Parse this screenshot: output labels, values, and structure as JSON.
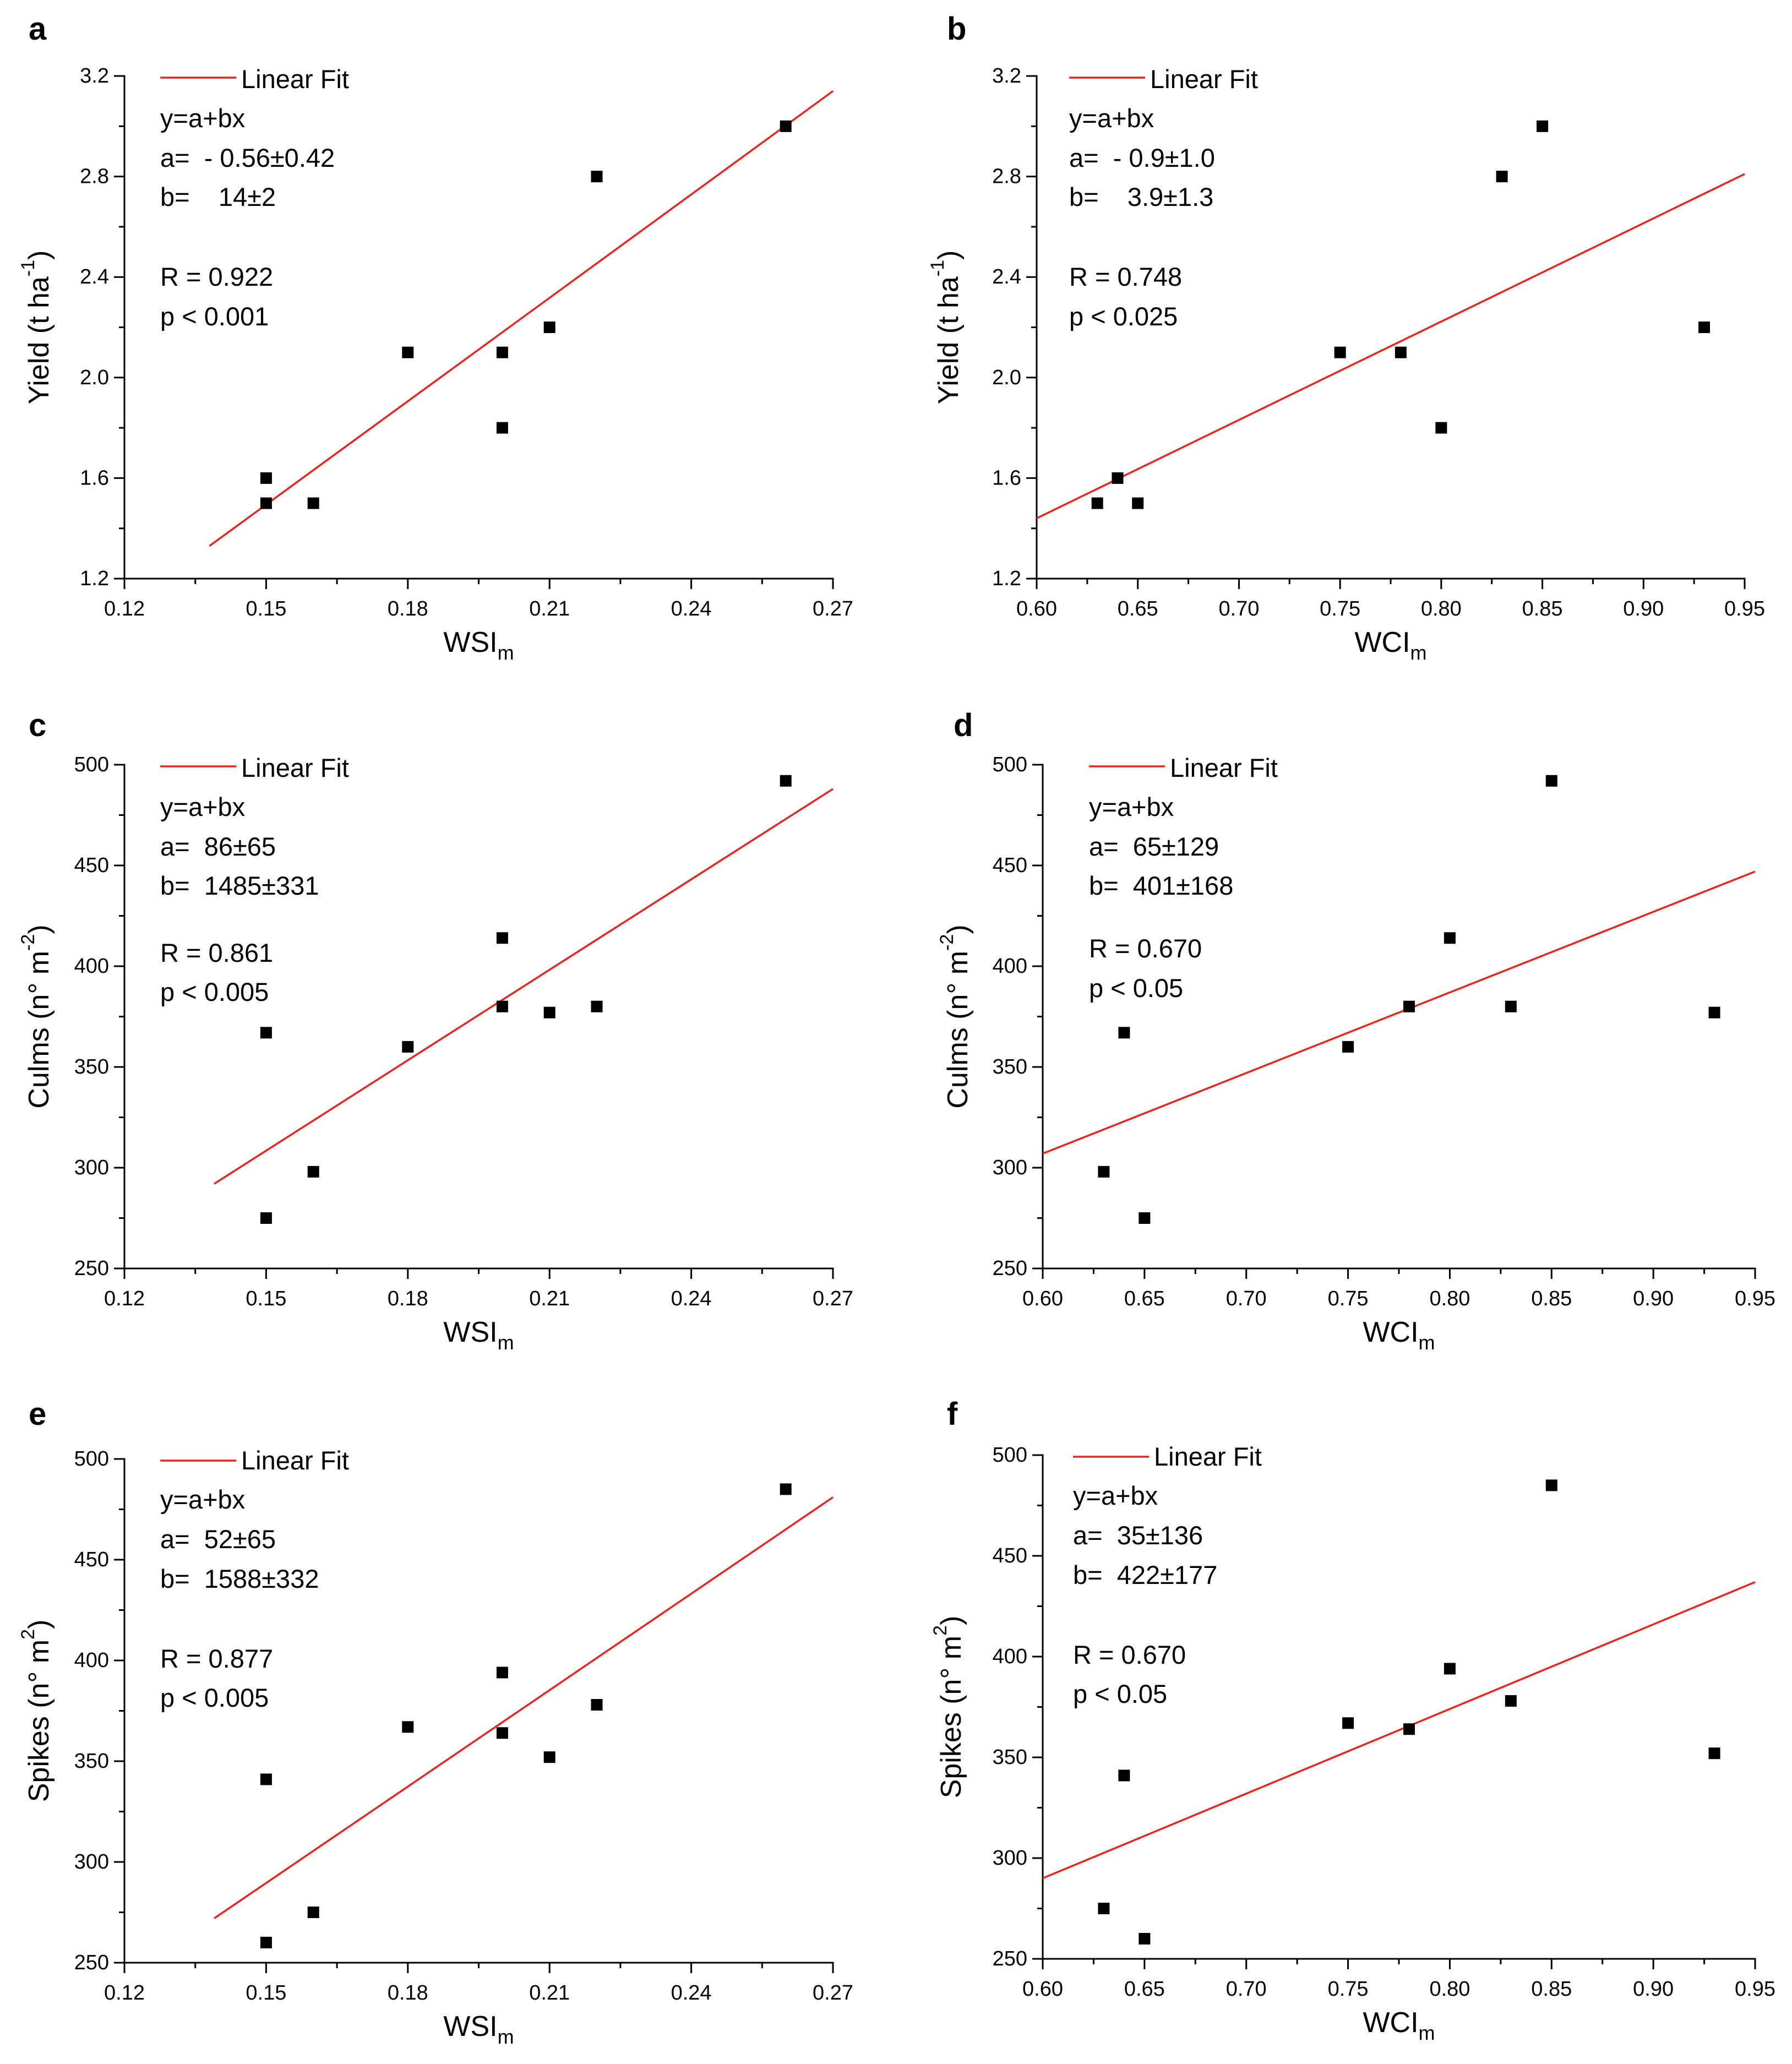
{
  "colors": {
    "points": "#000000",
    "fit": "#e8251f",
    "axis": "#000000",
    "text": "#000000"
  },
  "chart_data": [
    {
      "type": "scatter",
      "panel_label": "a",
      "xlabel": {
        "text": "WSI",
        "sub": "m"
      },
      "ylabel": {
        "text": "Yield (t ha",
        "sup": "-1",
        "close": ")"
      },
      "xlim": [
        0.12,
        0.27
      ],
      "ylim": [
        1.2,
        3.2
      ],
      "xticks": [
        "0.12",
        "0.15",
        "0.18",
        "0.21",
        "0.24",
        "0.27"
      ],
      "yticks": [
        "1.2",
        "1.6",
        "2.0",
        "2.4",
        "2.8",
        "3.2"
      ],
      "series": [
        {
          "name": "data",
          "x": [
            0.15,
            0.15,
            0.16,
            0.18,
            0.2,
            0.2,
            0.21,
            0.22,
            0.26
          ],
          "y": [
            1.6,
            1.5,
            1.5,
            2.1,
            2.1,
            1.8,
            2.2,
            2.8,
            3.0
          ]
        }
      ],
      "fit": {
        "name": "Linear Fit",
        "x": [
          0.138,
          0.27
        ],
        "y": [
          1.33,
          3.14
        ]
      },
      "legend": {
        "entry": "Linear Fit",
        "equation": "y=a+bx",
        "a": "a=  - 0.56±0.42",
        "b": "b=    14±2",
        "r": "R = 0.922",
        "p": "p < 0.001"
      }
    },
    {
      "type": "scatter",
      "panel_label": "b",
      "xlabel": {
        "text": "WCI",
        "sub": "m"
      },
      "ylabel": {
        "text": "Yield (t ha",
        "sup": "-1",
        "close": ")"
      },
      "xlim": [
        0.6,
        0.95
      ],
      "ylim": [
        1.2,
        3.2
      ],
      "xticks": [
        "0.60",
        "0.65",
        "0.70",
        "0.75",
        "0.80",
        "0.85",
        "0.90",
        "0.95"
      ],
      "yticks": [
        "1.2",
        "1.6",
        "2.0",
        "2.4",
        "2.8",
        "3.2"
      ],
      "series": [
        {
          "name": "data",
          "x": [
            0.63,
            0.64,
            0.65,
            0.75,
            0.78,
            0.8,
            0.83,
            0.85,
            0.93
          ],
          "y": [
            1.5,
            1.6,
            1.5,
            2.1,
            2.1,
            1.8,
            2.8,
            3.0,
            2.2
          ]
        }
      ],
      "fit": {
        "name": "Linear Fit",
        "x": [
          0.6,
          0.95
        ],
        "y": [
          1.44,
          2.81
        ]
      },
      "legend": {
        "entry": "Linear Fit",
        "equation": "y=a+bx",
        "a": "a=  - 0.9±1.0",
        "b": "b=    3.9±1.3",
        "r": "R = 0.748",
        "p": "p < 0.025"
      }
    },
    {
      "type": "scatter",
      "panel_label": "c",
      "xlabel": {
        "text": "WSI",
        "sub": "m"
      },
      "ylabel": {
        "text": "Culms (n° m",
        "sup": "-2",
        "close": ")"
      },
      "xlim": [
        0.12,
        0.27
      ],
      "ylim": [
        250,
        500
      ],
      "xticks": [
        "0.12",
        "0.15",
        "0.18",
        "0.21",
        "0.24",
        "0.27"
      ],
      "yticks": [
        "250",
        "300",
        "350",
        "400",
        "450",
        "500"
      ],
      "series": [
        {
          "name": "data",
          "x": [
            0.15,
            0.15,
            0.16,
            0.18,
            0.2,
            0.2,
            0.21,
            0.22,
            0.26
          ],
          "y": [
            367,
            275,
            298,
            360,
            414,
            380,
            377,
            380,
            492
          ]
        }
      ],
      "fit": {
        "name": "Linear Fit",
        "x": [
          0.139,
          0.27
        ],
        "y": [
          292,
          488
        ]
      },
      "legend": {
        "entry": "Linear Fit",
        "equation": "y=a+bx",
        "a": "a=  86±65",
        "b": "b=  1485±331",
        "r": "R = 0.861",
        "p": "p < 0.005"
      }
    },
    {
      "type": "scatter",
      "panel_label": "d",
      "xlabel": {
        "text": "WCI",
        "sub": "m"
      },
      "ylabel": {
        "text": "Culms (n° m",
        "sup": "-2",
        "close": ")"
      },
      "xlim": [
        0.6,
        0.95
      ],
      "ylim": [
        250,
        500
      ],
      "xticks": [
        "0.60",
        "0.65",
        "0.70",
        "0.75",
        "0.80",
        "0.85",
        "0.90",
        "0.95"
      ],
      "yticks": [
        "250",
        "300",
        "350",
        "400",
        "450",
        "500"
      ],
      "series": [
        {
          "name": "data",
          "x": [
            0.63,
            0.64,
            0.65,
            0.75,
            0.78,
            0.8,
            0.83,
            0.85,
            0.93
          ],
          "y": [
            298,
            367,
            275,
            360,
            380,
            414,
            380,
            492,
            377
          ]
        }
      ],
      "fit": {
        "name": "Linear Fit",
        "x": [
          0.6,
          0.95
        ],
        "y": [
          307,
          447
        ]
      },
      "legend": {
        "entry": "Linear Fit",
        "equation": "y=a+bx",
        "a": "a=  65±129",
        "b": "b=  401±168",
        "r": "R = 0.670",
        "p": "p < 0.05"
      }
    },
    {
      "type": "scatter",
      "panel_label": "e",
      "xlabel": {
        "text": "WSI",
        "sub": "m"
      },
      "ylabel": {
        "text": "Spikes (n° m",
        "sup": "2",
        "close": ")"
      },
      "xlim": [
        0.12,
        0.27
      ],
      "ylim": [
        250,
        500
      ],
      "xticks": [
        "0.12",
        "0.15",
        "0.18",
        "0.21",
        "0.24",
        "0.27"
      ],
      "yticks": [
        "250",
        "300",
        "350",
        "400",
        "450",
        "500"
      ],
      "series": [
        {
          "name": "data",
          "x": [
            0.15,
            0.15,
            0.16,
            0.18,
            0.2,
            0.2,
            0.21,
            0.22,
            0.26
          ],
          "y": [
            341,
            260,
            275,
            367,
            394,
            364,
            352,
            378,
            485
          ]
        }
      ],
      "fit": {
        "name": "Linear Fit",
        "x": [
          0.139,
          0.27
        ],
        "y": [
          272,
          481
        ]
      },
      "legend": {
        "entry": "Linear Fit",
        "equation": "y=a+bx",
        "a": "a=  52±65",
        "b": "b=  1588±332",
        "r": "R = 0.877",
        "p": "p < 0.005"
      }
    },
    {
      "type": "scatter",
      "panel_label": "f",
      "xlabel": {
        "text": "WCI",
        "sub": "m"
      },
      "ylabel": {
        "text": "Spikes (n° m",
        "sup": "2",
        "close": ")"
      },
      "xlim": [
        0.6,
        0.95
      ],
      "ylim": [
        250,
        500
      ],
      "xticks": [
        "0.60",
        "0.65",
        "0.70",
        "0.75",
        "0.80",
        "0.85",
        "0.90",
        "0.95"
      ],
      "yticks": [
        "250",
        "300",
        "350",
        "400",
        "450",
        "500"
      ],
      "series": [
        {
          "name": "data",
          "x": [
            0.63,
            0.64,
            0.65,
            0.75,
            0.78,
            0.8,
            0.83,
            0.85,
            0.93
          ],
          "y": [
            275,
            341,
            260,
            367,
            364,
            394,
            378,
            485,
            352
          ]
        }
      ],
      "fit": {
        "name": "Linear Fit",
        "x": [
          0.6,
          0.95
        ],
        "y": [
          290,
          437
        ]
      },
      "legend": {
        "entry": "Linear Fit",
        "equation": "y=a+bx",
        "a": "a=  35±136",
        "b": "b=  422±177",
        "r": "R = 0.670",
        "p": "p < 0.05"
      }
    }
  ]
}
